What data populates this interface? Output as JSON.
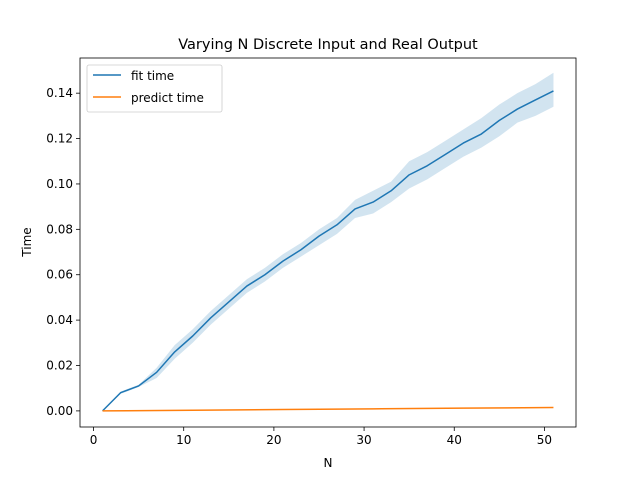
{
  "chart_data": {
    "type": "line",
    "title": "Varying N Discrete Input and Real Output",
    "xlabel": "N",
    "ylabel": "Time",
    "xlim": [
      -1.5,
      53.5
    ],
    "ylim": [
      -0.0071,
      0.1555
    ],
    "xticks": [
      0,
      10,
      20,
      30,
      40,
      50
    ],
    "xtick_labels": [
      "0",
      "10",
      "20",
      "30",
      "40",
      "50"
    ],
    "yticks": [
      0.0,
      0.02,
      0.04,
      0.06,
      0.08,
      0.1,
      0.12,
      0.14
    ],
    "ytick_labels": [
      "0.00",
      "0.02",
      "0.04",
      "0.06",
      "0.08",
      "0.10",
      "0.12",
      "0.14"
    ],
    "grid": false,
    "legend_position": "top-left",
    "series": [
      {
        "name": "fit time",
        "color": "#1f77b4",
        "band_color": "#1f77b4",
        "x": [
          1,
          3,
          5,
          7,
          9,
          11,
          13,
          15,
          17,
          19,
          21,
          23,
          25,
          27,
          29,
          31,
          33,
          35,
          37,
          39,
          41,
          43,
          45,
          47,
          49,
          51
        ],
        "y": [
          0.0,
          0.008,
          0.011,
          0.017,
          0.026,
          0.033,
          0.041,
          0.048,
          0.055,
          0.06,
          0.066,
          0.071,
          0.077,
          0.082,
          0.089,
          0.092,
          0.097,
          0.104,
          0.108,
          0.113,
          0.118,
          0.122,
          0.128,
          0.133,
          0.137,
          0.141
        ],
        "y_lower": [
          0.0,
          0.0075,
          0.0105,
          0.0145,
          0.023,
          0.03,
          0.038,
          0.045,
          0.052,
          0.057,
          0.063,
          0.068,
          0.073,
          0.078,
          0.085,
          0.087,
          0.092,
          0.098,
          0.102,
          0.107,
          0.112,
          0.116,
          0.121,
          0.127,
          0.13,
          0.134
        ],
        "y_upper": [
          0.0,
          0.0085,
          0.0115,
          0.019,
          0.029,
          0.036,
          0.044,
          0.051,
          0.058,
          0.063,
          0.069,
          0.074,
          0.08,
          0.085,
          0.093,
          0.097,
          0.101,
          0.11,
          0.114,
          0.119,
          0.124,
          0.129,
          0.135,
          0.14,
          0.144,
          0.149
        ]
      },
      {
        "name": "predict time",
        "color": "#ff7f0e",
        "x": [
          1,
          11,
          21,
          31,
          41,
          51
        ],
        "y": [
          0.0,
          0.0003,
          0.0006,
          0.0009,
          0.0012,
          0.0015
        ]
      }
    ]
  }
}
